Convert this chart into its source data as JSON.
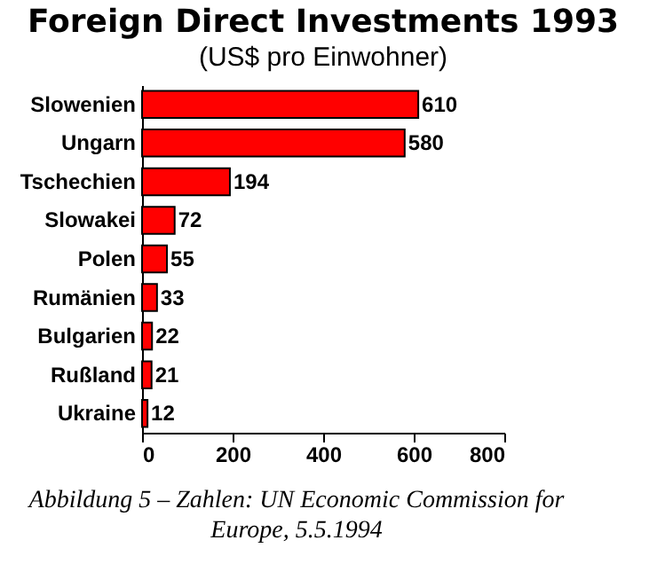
{
  "chart_data": {
    "type": "bar",
    "orientation": "horizontal",
    "title": "Foreign Direct Investments 1993",
    "subtitle": "(US$ pro Einwohner)",
    "categories": [
      "Slowenien",
      "Ungarn",
      "Tschechien",
      "Slowakei",
      "Polen",
      "Rumänien",
      "Bulgarien",
      "Rußland",
      "Ukraine"
    ],
    "values": [
      610,
      580,
      194,
      72,
      55,
      33,
      22,
      21,
      12
    ],
    "color": "#ff0000",
    "data_labels": true,
    "xlim": [
      0,
      800
    ],
    "xticks": [
      0,
      200,
      400,
      600,
      800
    ],
    "grid": false,
    "annotations": [
      "Abbildung 5 – Zahlen: UN Economic Commission for Europe, 5.5.1994"
    ]
  }
}
